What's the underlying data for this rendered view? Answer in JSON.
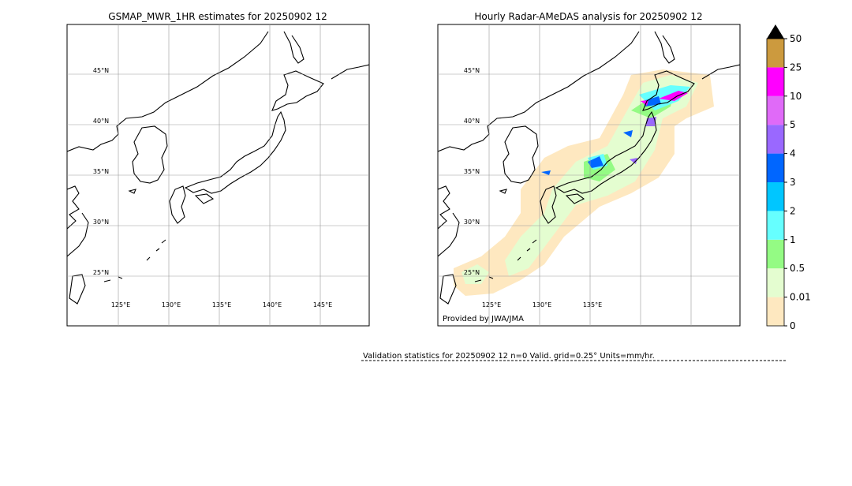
{
  "left_map": {
    "title": "GSMAP_MWR_1HR estimates for 20250902 12",
    "lat_labels": [
      "45°N",
      "40°N",
      "35°N",
      "30°N",
      "25°N"
    ],
    "lon_labels": [
      "125°E",
      "130°E",
      "135°E",
      "140°E",
      "145°E"
    ]
  },
  "right_map": {
    "title": "Hourly Radar-AMeDAS analysis for 20250902 12",
    "lat_labels": [
      "45°N",
      "40°N",
      "35°N",
      "30°N",
      "25°N"
    ],
    "lon_labels": [
      "125°E",
      "130°E",
      "135°E"
    ],
    "credit": "Provided by JWA/JMA"
  },
  "colorbar": {
    "ticks": [
      0,
      0.01,
      0.5,
      1,
      2,
      3,
      4,
      5,
      10,
      25,
      50
    ],
    "colors": [
      "#fee8c0",
      "#e4fdd0",
      "#94fb84",
      "#66ffff",
      "#00c6ff",
      "#0066ff",
      "#9a68ff",
      "#e06af8",
      "#ff00ff",
      "#cc9a3e"
    ],
    "extend_color": "#000000"
  },
  "footer": {
    "validation": "Validation statistics for 20250902 12  n=0 Valid. grid=0.25° Units=mm/hr."
  }
}
